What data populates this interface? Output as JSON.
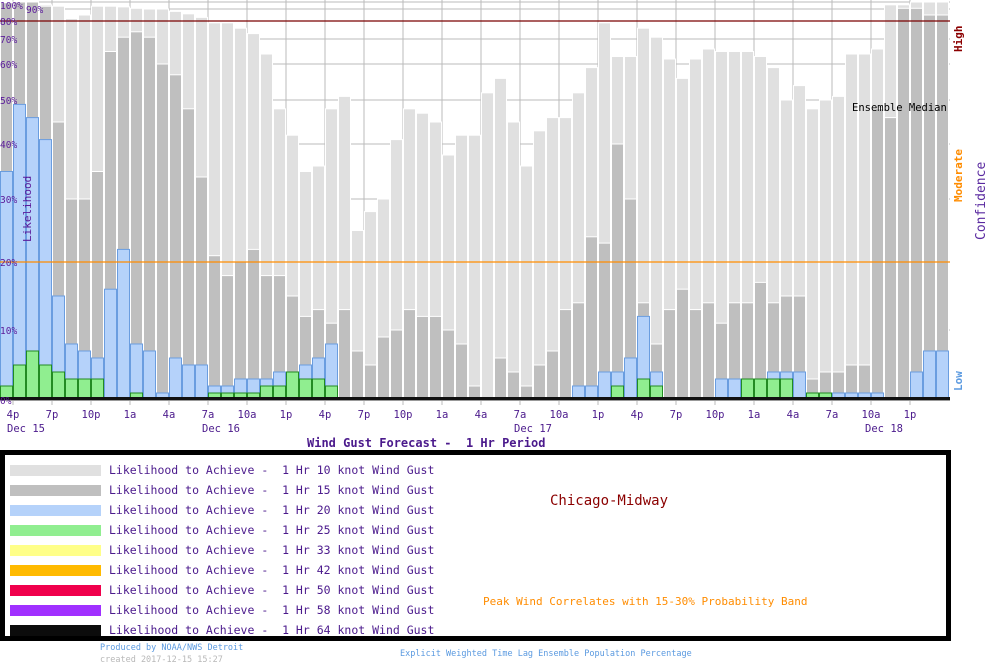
{
  "chart_data": {
    "type": "bar",
    "title": "Wind Gust Forecast -  1 Hr Period",
    "ylabel": "Likelihood",
    "y2label": "Confidence",
    "ylim": [
      0,
      100
    ],
    "yticks": [
      "0%",
      "10%",
      "20%",
      "30%",
      "40%",
      "50%",
      "60%",
      "70%",
      "80%",
      "90%",
      "100%"
    ],
    "ytick_values": [
      0,
      10,
      20,
      30,
      40,
      50,
      60,
      70,
      80,
      90,
      100
    ],
    "confidence_levels": {
      "high": "High",
      "moderate": "Moderate",
      "low": "Low"
    },
    "threshold_lines": [
      {
        "value": 80,
        "color": "#7a0000"
      },
      {
        "value": 20,
        "color": "#ff8c00"
      }
    ],
    "annotation": "Ensemble Median",
    "x_tick_labels": [
      "4p",
      "7p",
      "10p",
      "1a",
      "4a",
      "7a",
      "10a",
      "1p",
      "4p",
      "7p",
      "10p",
      "1a",
      "4a",
      "7a",
      "10a",
      "1p",
      "4p",
      "7p",
      "10p",
      "1a",
      "4a",
      "7a",
      "10a",
      "1p"
    ],
    "date_labels": [
      {
        "label": "Dec 15",
        "tick_index": 0
      },
      {
        "label": "Dec 16",
        "tick_index": 5
      },
      {
        "label": "Dec 17",
        "tick_index": 13
      },
      {
        "label": "Dec 18",
        "tick_index": 22
      }
    ],
    "bar_interval_hours": 1,
    "series": [
      {
        "name": "10 knot",
        "color": "#e0e0e0",
        "values": [
          100,
          100,
          100,
          96,
          94,
          82,
          85,
          94,
          94,
          93,
          91,
          90,
          90,
          88,
          86,
          83,
          79,
          79,
          76,
          73,
          64,
          48,
          42,
          35,
          36,
          48,
          51,
          25,
          28,
          30,
          41,
          48,
          47,
          45,
          38,
          42,
          42,
          52,
          56,
          45,
          36,
          43,
          46,
          46,
          52,
          59,
          79,
          63,
          63,
          76,
          71,
          62,
          56,
          62,
          66,
          65,
          65,
          65,
          63,
          59,
          50,
          54,
          48,
          50,
          51,
          64,
          64,
          66,
          96,
          96,
          100,
          100,
          100
        ]
      },
      {
        "name": "15 knot",
        "color": "#bfbfbf",
        "values": [
          99,
          100,
          100,
          94,
          45,
          30,
          30,
          35,
          65,
          71,
          74,
          71,
          60,
          57,
          48,
          34,
          21,
          18,
          20,
          22,
          18,
          18,
          15,
          12,
          13,
          11,
          13,
          7,
          5,
          9,
          10,
          13,
          12,
          12,
          10,
          8,
          2,
          0,
          6,
          4,
          2,
          5,
          7,
          13,
          14,
          24,
          23,
          40,
          30,
          14,
          8,
          13,
          16,
          13,
          14,
          11,
          14,
          14,
          17,
          14,
          15,
          15,
          3,
          4,
          4,
          5,
          5,
          48,
          46,
          91,
          91,
          85,
          85
        ]
      },
      {
        "name": "20 knot",
        "color": "#b5d2fa",
        "values": [
          35,
          49,
          46,
          41,
          15,
          8,
          7,
          6,
          16,
          22,
          8,
          7,
          1,
          6,
          5,
          5,
          2,
          2,
          3,
          3,
          3,
          4,
          4,
          5,
          6,
          8,
          0,
          0,
          0,
          0,
          0,
          0,
          0,
          0,
          0,
          0,
          0,
          0,
          0,
          0,
          0,
          0,
          0,
          0,
          2,
          2,
          4,
          4,
          6,
          12,
          4,
          0,
          0,
          0,
          0,
          3,
          3,
          3,
          3,
          4,
          4,
          4,
          0,
          0,
          1,
          1,
          1,
          1,
          0,
          0,
          4,
          7,
          7
        ]
      },
      {
        "name": "25 knot",
        "color": "#90ee90",
        "values": [
          2,
          5,
          7,
          5,
          4,
          3,
          3,
          3,
          0,
          0,
          1,
          0,
          0,
          0,
          0,
          0,
          1,
          1,
          1,
          1,
          2,
          2,
          4,
          3,
          3,
          2,
          0,
          0,
          0,
          0,
          0,
          0,
          0,
          0,
          0,
          0,
          0,
          0,
          0,
          0,
          0,
          0,
          0,
          0,
          0,
          0,
          0,
          2,
          0,
          3,
          2,
          0,
          0,
          0,
          0,
          0,
          0,
          3,
          3,
          3,
          3,
          0,
          1,
          1,
          0,
          0,
          0,
          0,
          0,
          0,
          0,
          0,
          0
        ]
      }
    ]
  },
  "legend": {
    "items": [
      {
        "label": "Likelihood to Achieve -  1 Hr 10 knot Wind Gust",
        "color": "#e0e0e0"
      },
      {
        "label": "Likelihood to Achieve -  1 Hr 15 knot Wind Gust",
        "color": "#bfbfbf"
      },
      {
        "label": "Likelihood to Achieve -  1 Hr 20 knot Wind Gust",
        "color": "#b5d2fa"
      },
      {
        "label": "Likelihood to Achieve -  1 Hr 25 knot Wind Gust",
        "color": "#90ee90"
      },
      {
        "label": "Likelihood to Achieve -  1 Hr 33 knot Wind Gust",
        "color": "#ffff88"
      },
      {
        "label": "Likelihood to Achieve -  1 Hr 42 knot Wind Gust",
        "color": "#ffba00"
      },
      {
        "label": "Likelihood to Achieve -  1 Hr 50 knot Wind Gust",
        "color": "#f0004c"
      },
      {
        "label": "Likelihood to Achieve -  1 Hr 58 knot Wind Gust",
        "color": "#a030ff"
      },
      {
        "label": "Likelihood to Achieve -  1 Hr 64 knot Wind Gust",
        "color": "#0c0c0c"
      }
    ],
    "station": "Chicago-Midway",
    "note": "Peak Wind Correlates with 15-30% Probability Band"
  },
  "footer": {
    "produced_by": "Produced by NOAA/NWS Detroit",
    "created": "created 2017-12-15 15:27",
    "method": "Explicit Weighted Time Lag Ensemble Population Percentage"
  }
}
